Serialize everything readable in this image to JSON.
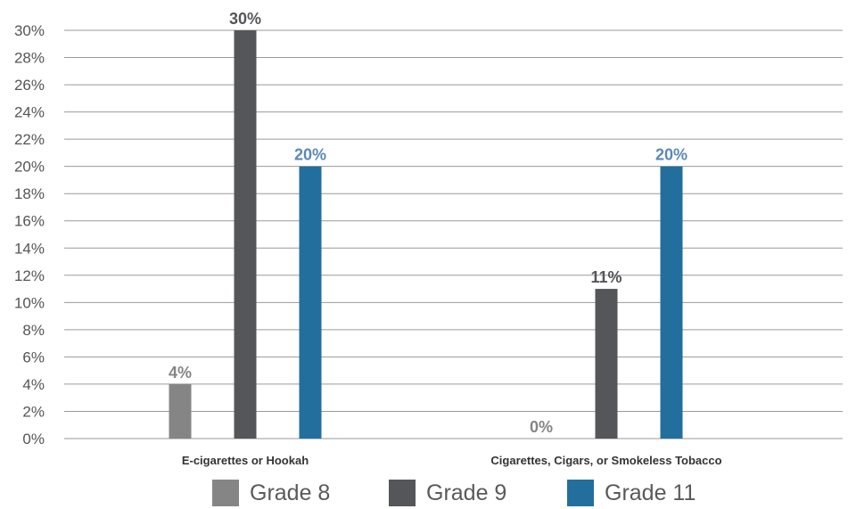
{
  "chart_data": {
    "type": "bar",
    "categories": [
      "E-cigarettes or Hookah",
      "Cigarettes, Cigars, or Smokeless Tobacco"
    ],
    "ylim": [
      0,
      30
    ],
    "yticks": [
      "0%",
      "2%",
      "4%",
      "6%",
      "8%",
      "10%",
      "12%",
      "14%",
      "16%",
      "18%",
      "20%",
      "22%",
      "24%",
      "26%",
      "28%",
      "30%"
    ],
    "grid": true,
    "legend_position": "bottom",
    "series": [
      {
        "name": "Grade 8",
        "color": "#858585",
        "values": [
          4,
          0
        ],
        "labels": [
          "4%",
          "0%"
        ]
      },
      {
        "name": "Grade 9",
        "color": "#55565a",
        "values": [
          30,
          11
        ],
        "labels": [
          "30%",
          "11%"
        ]
      },
      {
        "name": "Grade 11",
        "color": "#226f9d",
        "values": [
          20,
          20
        ],
        "labels": [
          "20%",
          "20%"
        ]
      }
    ],
    "label_colors": [
      "#858585",
      "#55565a",
      "#5b88b6"
    ],
    "title": "",
    "xlabel": "",
    "ylabel": ""
  }
}
